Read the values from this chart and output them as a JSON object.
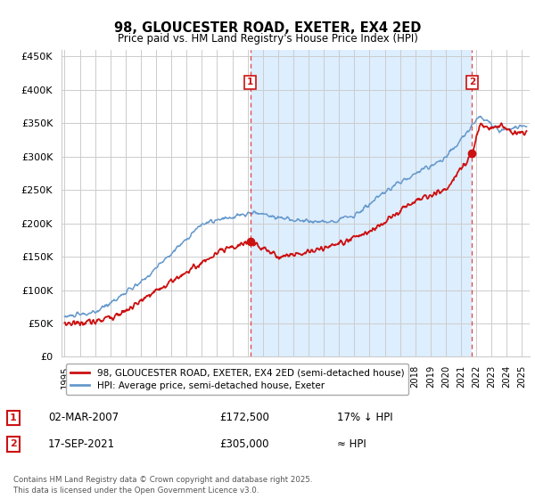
{
  "title": "98, GLOUCESTER ROAD, EXETER, EX4 2ED",
  "subtitle": "Price paid vs. HM Land Registry's House Price Index (HPI)",
  "ylabel_ticks": [
    "£0",
    "£50K",
    "£100K",
    "£150K",
    "£200K",
    "£250K",
    "£300K",
    "£350K",
    "£400K",
    "£450K"
  ],
  "ytick_values": [
    0,
    50000,
    100000,
    150000,
    200000,
    250000,
    300000,
    350000,
    400000,
    450000
  ],
  "ylim": [
    0,
    460000
  ],
  "xlim_start": 1994.8,
  "xlim_end": 2025.5,
  "hpi_color": "#6699cc",
  "price_color": "#cc1111",
  "dashed_color": "#dd4444",
  "shade_color": "#ddeeff",
  "bg_color": "#ffffff",
  "grid_color": "#cccccc",
  "sale1_year": 2007.17,
  "sale1_price": 172500,
  "sale2_year": 2021.72,
  "sale2_price": 305000,
  "legend_label_red": "98, GLOUCESTER ROAD, EXETER, EX4 2ED (semi-detached house)",
  "legend_label_blue": "HPI: Average price, semi-detached house, Exeter",
  "annotation1": "1",
  "annotation2": "2",
  "table_row1": [
    "1",
    "02-MAR-2007",
    "£172,500",
    "17% ↓ HPI"
  ],
  "table_row2": [
    "2",
    "17-SEP-2021",
    "£305,000",
    "≈ HPI"
  ],
  "footer": "Contains HM Land Registry data © Crown copyright and database right 2025.\nThis data is licensed under the Open Government Licence v3.0."
}
